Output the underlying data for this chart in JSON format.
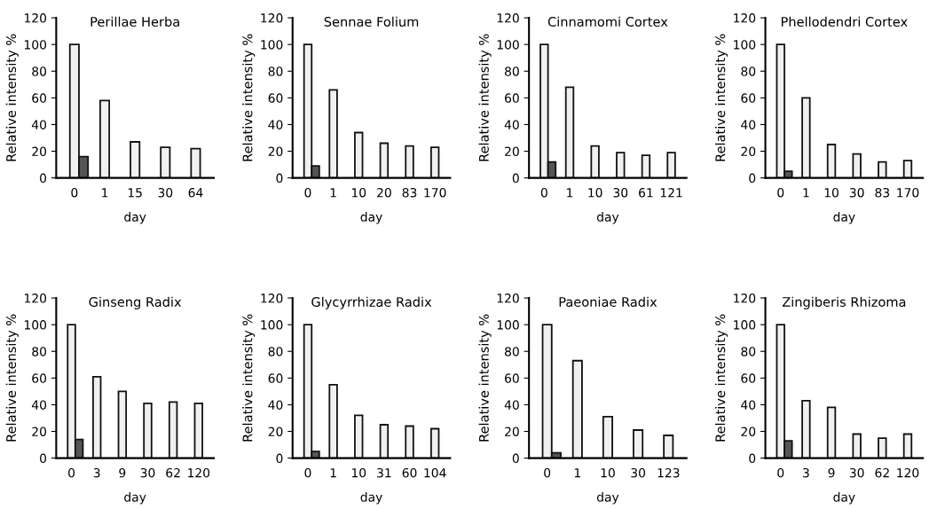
{
  "chart_data": [
    {
      "type": "bar",
      "title": "Perillae Herba",
      "xlabel": "day",
      "ylabel": "Relative intensity %",
      "categories": [
        "0",
        "1",
        "15",
        "30",
        "64"
      ],
      "ylim": [
        0,
        120
      ],
      "yticks": [
        0,
        20,
        40,
        60,
        80,
        100,
        120
      ],
      "series": [
        {
          "color": "#f0f0f0",
          "values": [
            100,
            58,
            27,
            23,
            22
          ]
        },
        {
          "color": "#555555",
          "values": [
            16,
            null,
            null,
            null,
            null
          ]
        }
      ]
    },
    {
      "type": "bar",
      "title": "Sennae Folium",
      "xlabel": "day",
      "ylabel": "Relative intensity %",
      "categories": [
        "0",
        "1",
        "10",
        "20",
        "83",
        "170"
      ],
      "ylim": [
        0,
        120
      ],
      "yticks": [
        0,
        20,
        40,
        60,
        80,
        100,
        120
      ],
      "series": [
        {
          "color": "#f0f0f0",
          "values": [
            100,
            66,
            34,
            26,
            24,
            23
          ]
        },
        {
          "color": "#555555",
          "values": [
            9,
            null,
            null,
            null,
            null,
            null
          ]
        }
      ]
    },
    {
      "type": "bar",
      "title": "Cinnamomi Cortex",
      "xlabel": "day",
      "ylabel": "Relative intensity %",
      "categories": [
        "0",
        "1",
        "10",
        "30",
        "61",
        "121"
      ],
      "ylim": [
        0,
        120
      ],
      "yticks": [
        0,
        20,
        40,
        60,
        80,
        100,
        120
      ],
      "series": [
        {
          "color": "#f0f0f0",
          "values": [
            100,
            68,
            24,
            19,
            17,
            19
          ]
        },
        {
          "color": "#555555",
          "values": [
            12,
            null,
            null,
            null,
            null,
            null
          ]
        }
      ]
    },
    {
      "type": "bar",
      "title": "Phellodendri Cortex",
      "xlabel": "day",
      "ylabel": "Relative intensity %",
      "categories": [
        "0",
        "1",
        "10",
        "30",
        "83",
        "170"
      ],
      "ylim": [
        0,
        120
      ],
      "yticks": [
        0,
        20,
        40,
        60,
        80,
        100,
        120
      ],
      "series": [
        {
          "color": "#f0f0f0",
          "values": [
            100,
            60,
            25,
            18,
            12,
            13
          ]
        },
        {
          "color": "#555555",
          "values": [
            5,
            null,
            null,
            null,
            null,
            null
          ]
        }
      ]
    },
    {
      "type": "bar",
      "title": "Ginseng Radix",
      "xlabel": "day",
      "ylabel": "Relative intensity %",
      "categories": [
        "0",
        "3",
        "9",
        "30",
        "62",
        "120"
      ],
      "ylim": [
        0,
        120
      ],
      "yticks": [
        0,
        20,
        40,
        60,
        80,
        100,
        120
      ],
      "series": [
        {
          "color": "#f0f0f0",
          "values": [
            100,
            61,
            50,
            41,
            42,
            41
          ]
        },
        {
          "color": "#555555",
          "values": [
            14,
            null,
            null,
            null,
            null,
            null
          ]
        }
      ]
    },
    {
      "type": "bar",
      "title": "Glycyrrhizae Radix",
      "xlabel": "day",
      "ylabel": "Relative intensity %",
      "categories": [
        "0",
        "1",
        "10",
        "31",
        "60",
        "104"
      ],
      "ylim": [
        0,
        120
      ],
      "yticks": [
        0,
        20,
        40,
        60,
        80,
        100,
        120
      ],
      "series": [
        {
          "color": "#f0f0f0",
          "values": [
            100,
            55,
            32,
            25,
            24,
            22
          ]
        },
        {
          "color": "#555555",
          "values": [
            5,
            null,
            null,
            null,
            null,
            null
          ]
        }
      ]
    },
    {
      "type": "bar",
      "title": "Paeoniae Radix",
      "xlabel": "day",
      "ylabel": "Relative intensity %",
      "categories": [
        "0",
        "1",
        "10",
        "30",
        "123"
      ],
      "ylim": [
        0,
        120
      ],
      "yticks": [
        0,
        20,
        40,
        60,
        80,
        100,
        120
      ],
      "series": [
        {
          "color": "#f0f0f0",
          "values": [
            100,
            73,
            31,
            21,
            17
          ]
        },
        {
          "color": "#555555",
          "values": [
            4,
            null,
            null,
            null,
            null
          ]
        }
      ]
    },
    {
      "type": "bar",
      "title": "Zingiberis Rhizoma",
      "xlabel": "day",
      "ylabel": "Relative intensity %",
      "categories": [
        "0",
        "3",
        "9",
        "30",
        "62",
        "120"
      ],
      "ylim": [
        0,
        120
      ],
      "yticks": [
        0,
        20,
        40,
        60,
        80,
        100,
        120
      ],
      "series": [
        {
          "color": "#f0f0f0",
          "values": [
            100,
            43,
            38,
            18,
            15,
            18
          ]
        },
        {
          "color": "#555555",
          "values": [
            13,
            null,
            null,
            null,
            null,
            null
          ]
        }
      ]
    }
  ]
}
